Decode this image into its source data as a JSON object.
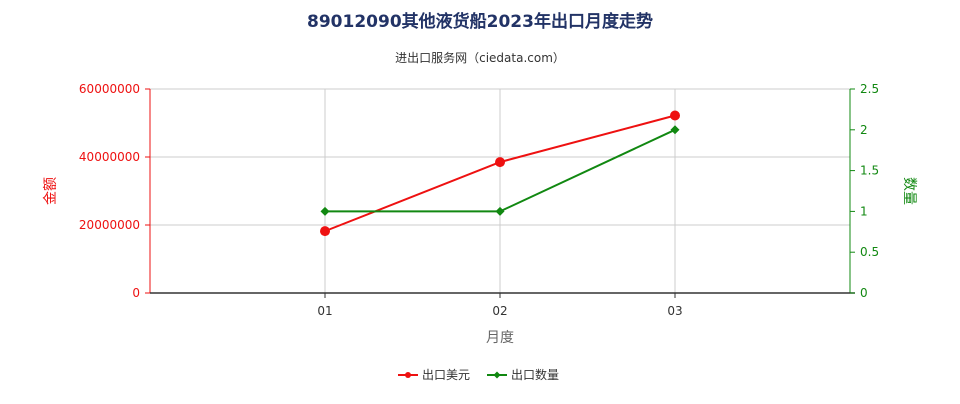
{
  "chart_data": {
    "type": "line",
    "title": "89012090其他液货船2023年出口月度走势",
    "subtitle": "进出口服务网（ciedata.com）",
    "xlabel": "月度",
    "ylabel_left": "金额",
    "ylabel_right": "数量",
    "categories": [
      "01",
      "02",
      "03"
    ],
    "x_positions": [
      1,
      2,
      3
    ],
    "xlim": [
      0,
      4
    ],
    "y_left": {
      "lim": [
        0,
        60000000
      ],
      "ticks": [
        "0",
        "20000000",
        "40000000",
        "60000000"
      ],
      "tick_values": [
        0,
        20000000,
        40000000,
        60000000
      ]
    },
    "y_right": {
      "lim": [
        0,
        2.5
      ],
      "ticks": [
        "0",
        "0.5",
        "1",
        "1.5",
        "2",
        "2.5"
      ],
      "tick_values": [
        0,
        0.5,
        1,
        1.5,
        2,
        2.5
      ]
    },
    "grid": true,
    "legend": "bottom-center",
    "series": [
      {
        "name": "出口美元",
        "axis": "left",
        "color": "#ee1111",
        "marker": "circle",
        "values": [
          18200000,
          38500000,
          52200000
        ]
      },
      {
        "name": "出口数量",
        "axis": "right",
        "color": "#118811",
        "marker": "diamond",
        "values": [
          1,
          1,
          2
        ]
      }
    ]
  },
  "colors": {
    "title": "#223366",
    "left_axis": "#ee1111",
    "right_axis": "#118811",
    "grid": "#cccccc",
    "text": "#333333"
  }
}
